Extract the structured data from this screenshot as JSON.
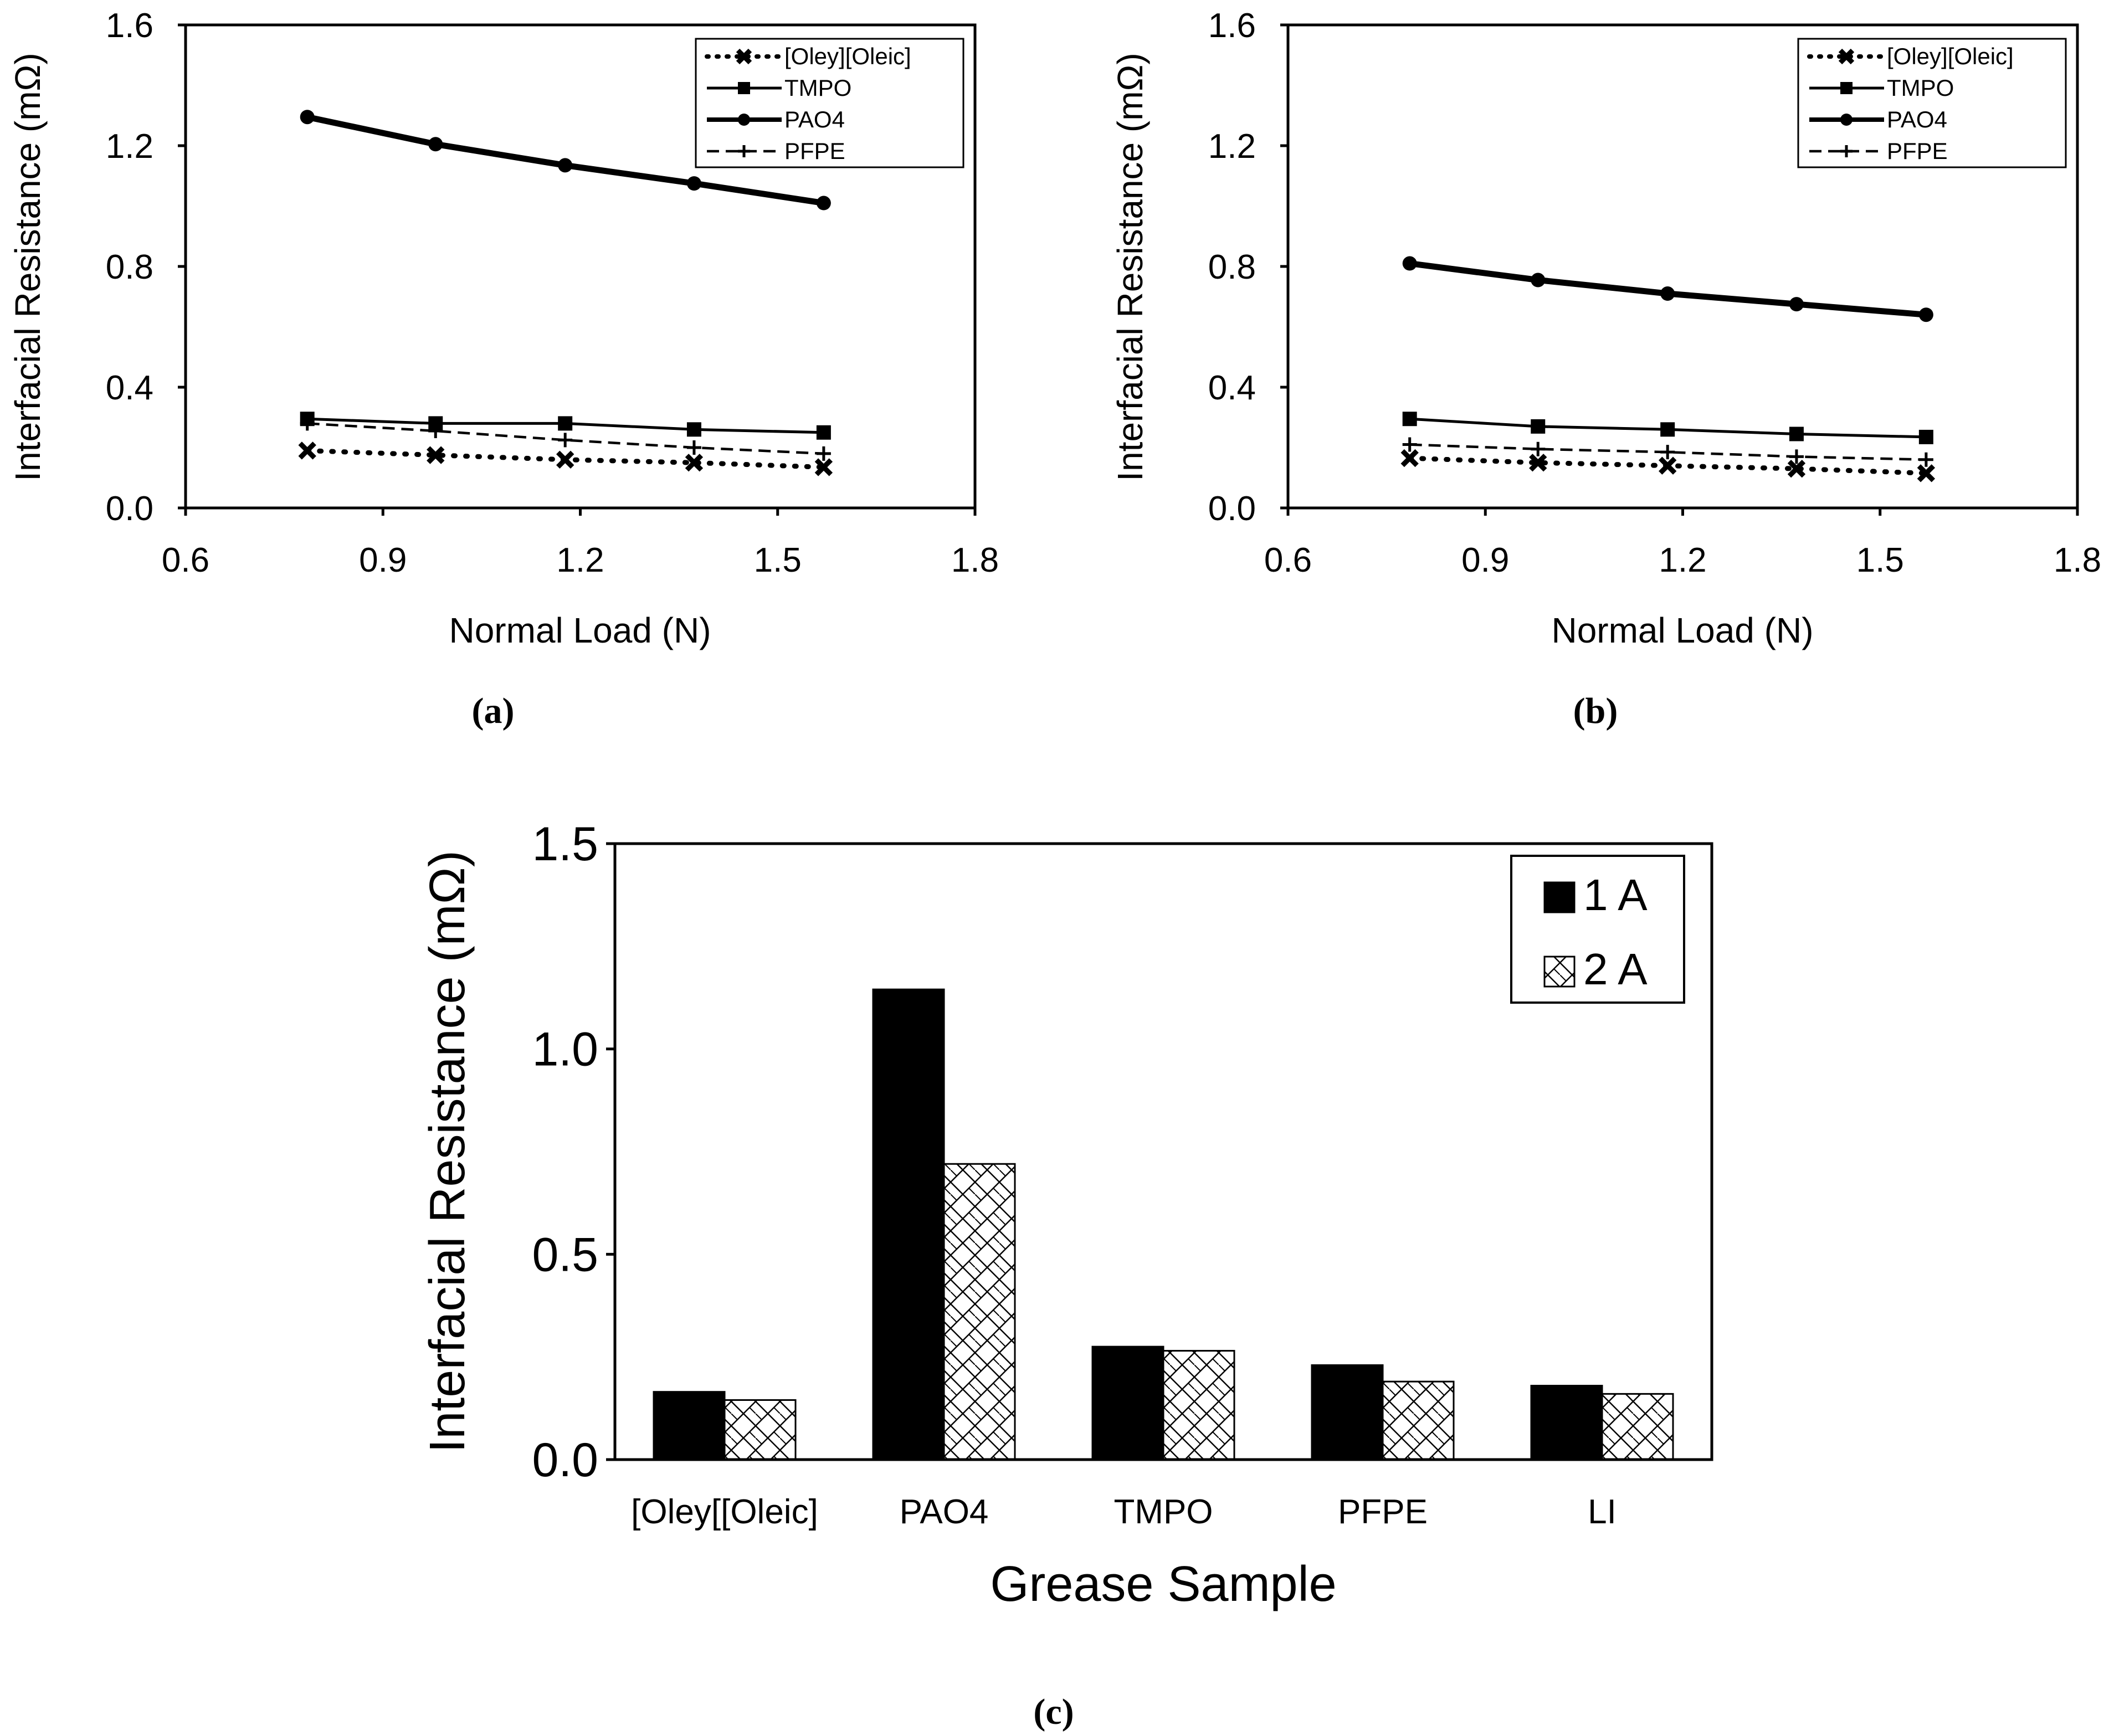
{
  "chart_data": [
    {
      "type": "line",
      "panel_label": "(a)",
      "xlabel": "Normal Load (N)",
      "ylabel": "Interfacial Resistance (mΩ)",
      "xlim": [
        0.6,
        1.8
      ],
      "ylim": [
        0.0,
        1.6
      ],
      "xticks": [
        "0.6",
        "0.9",
        "1.2",
        "1.5",
        "1.8"
      ],
      "yticks": [
        "0.0",
        "0.4",
        "0.8",
        "1.2",
        "1.6"
      ],
      "legend_position": "top-right",
      "series": [
        {
          "name": "[Oley][Oleic]",
          "marker": "x",
          "line": "dotted",
          "x": [
            0.785,
            0.98,
            1.177,
            1.373,
            1.57
          ],
          "y": [
            0.19,
            0.175,
            0.16,
            0.15,
            0.135
          ]
        },
        {
          "name": "TMPO",
          "marker": "square",
          "line": "solid",
          "x": [
            0.785,
            0.98,
            1.177,
            1.373,
            1.57
          ],
          "y": [
            0.295,
            0.28,
            0.28,
            0.26,
            0.25
          ]
        },
        {
          "name": "PAO4",
          "marker": "circle",
          "line": "thick",
          "x": [
            0.785,
            0.98,
            1.177,
            1.373,
            1.57
          ],
          "y": [
            1.295,
            1.205,
            1.135,
            1.075,
            1.01
          ]
        },
        {
          "name": "PFPE",
          "marker": "plus",
          "line": "dashed",
          "x": [
            0.785,
            0.98,
            1.177,
            1.373,
            1.57
          ],
          "y": [
            0.28,
            0.255,
            0.225,
            0.2,
            0.18
          ]
        }
      ]
    },
    {
      "type": "line",
      "panel_label": "(b)",
      "xlabel": "Normal Load (N)",
      "ylabel": "Interfacial Resistance (mΩ)",
      "xlim": [
        0.6,
        1.8
      ],
      "ylim": [
        0.0,
        1.6
      ],
      "xticks": [
        "0.6",
        "0.9",
        "1.2",
        "1.5",
        "1.8"
      ],
      "yticks": [
        "0.0",
        "0.4",
        "0.8",
        "1.2",
        "1.6"
      ],
      "legend_position": "top-right",
      "series": [
        {
          "name": "[Oley][Oleic]",
          "marker": "x",
          "line": "dotted",
          "x": [
            0.785,
            0.98,
            1.177,
            1.373,
            1.57
          ],
          "y": [
            0.165,
            0.15,
            0.14,
            0.13,
            0.115
          ]
        },
        {
          "name": "TMPO",
          "marker": "square",
          "line": "solid",
          "x": [
            0.785,
            0.98,
            1.177,
            1.373,
            1.57
          ],
          "y": [
            0.295,
            0.27,
            0.26,
            0.245,
            0.235
          ]
        },
        {
          "name": "PAO4",
          "marker": "circle",
          "line": "thick",
          "x": [
            0.785,
            0.98,
            1.177,
            1.373,
            1.57
          ],
          "y": [
            0.81,
            0.755,
            0.71,
            0.675,
            0.64
          ]
        },
        {
          "name": "PFPE",
          "marker": "plus",
          "line": "dashed",
          "x": [
            0.785,
            0.98,
            1.177,
            1.373,
            1.57
          ],
          "y": [
            0.21,
            0.195,
            0.185,
            0.17,
            0.16
          ]
        }
      ]
    },
    {
      "type": "bar",
      "panel_label": "(c)",
      "xlabel": "Grease Sample",
      "ylabel": "Interfacial Resistance (mΩ)",
      "ylim": [
        0.0,
        1.5
      ],
      "yticks": [
        "0.0",
        "0.5",
        "1.0",
        "1.5"
      ],
      "categories": [
        "[Oley[[Oleic]",
        "PAO4",
        "TMPO",
        "PFPE",
        "LI"
      ],
      "legend_position": "top-right",
      "series": [
        {
          "name": "1 A",
          "fill": "solid",
          "values": [
            0.165,
            1.145,
            0.275,
            0.23,
            0.18
          ]
        },
        {
          "name": "2 A",
          "fill": "hatched",
          "values": [
            0.145,
            0.72,
            0.265,
            0.19,
            0.16
          ]
        }
      ]
    }
  ],
  "colors": {
    "ink": "#000000",
    "background": "#ffffff"
  }
}
